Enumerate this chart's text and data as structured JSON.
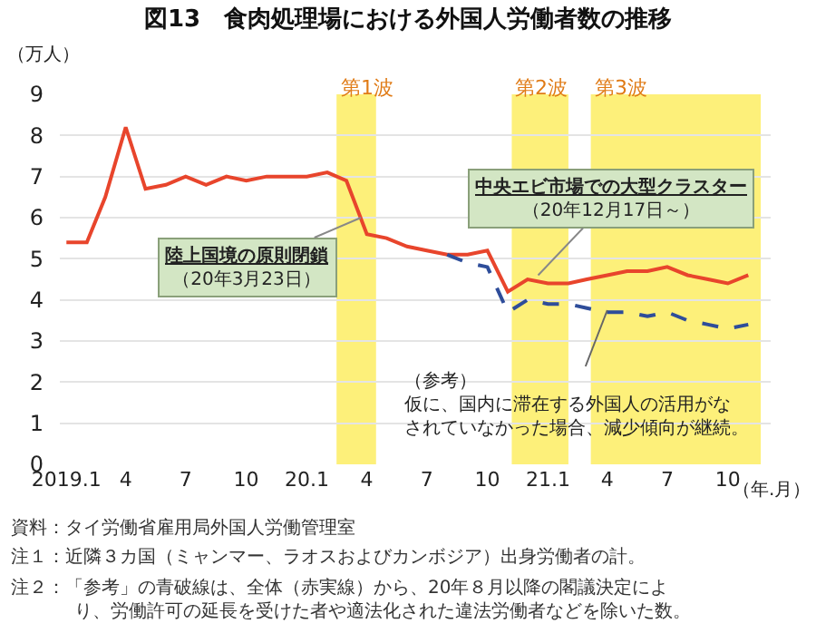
{
  "chart_data": {
    "type": "line",
    "title": "図13　食肉処理場における外国人労働者数の推移",
    "ylabel": "（万人）",
    "xlabel": "（年.月）",
    "x": [
      "2019-01",
      "2019-02",
      "2019-03",
      "2019-04",
      "2019-05",
      "2019-06",
      "2019-07",
      "2019-08",
      "2019-09",
      "2019-10",
      "2019-11",
      "2019-12",
      "2020-01",
      "2020-02",
      "2020-03",
      "2020-04",
      "2020-05",
      "2020-06",
      "2020-07",
      "2020-08",
      "2020-09",
      "2020-10",
      "2020-11",
      "2020-12",
      "2021-01",
      "2021-02",
      "2021-03",
      "2021-04",
      "2021-05",
      "2021-06",
      "2021-07",
      "2021-08",
      "2021-09",
      "2021-10",
      "2021-11"
    ],
    "series": [
      {
        "color": "#e8452c",
        "line_style": "solid",
        "values": [
          5.4,
          5.4,
          6.5,
          8.2,
          6.7,
          6.8,
          7.0,
          6.8,
          7.0,
          6.9,
          7.0,
          7.0,
          7.0,
          7.1,
          6.9,
          5.6,
          5.5,
          5.3,
          5.2,
          5.1,
          5.1,
          5.2,
          4.2,
          4.5,
          4.4,
          4.4,
          4.5,
          4.6,
          4.7,
          4.7,
          4.8,
          4.6,
          4.5,
          4.4,
          4.6
        ]
      },
      {
        "color": "#2e4d9a",
        "line_style": "dashed",
        "values": [
          null,
          null,
          null,
          null,
          null,
          null,
          null,
          null,
          null,
          null,
          null,
          null,
          null,
          null,
          null,
          null,
          null,
          null,
          null,
          5.1,
          4.9,
          4.8,
          3.7,
          4.0,
          3.9,
          3.9,
          3.8,
          3.7,
          3.7,
          3.6,
          3.7,
          3.5,
          3.4,
          3.3,
          3.4
        ]
      }
    ],
    "xlim": [
      "2018-12-22",
      "2021-12-05"
    ],
    "xticks": [
      {
        "value": "2019-01",
        "label": "2019.1"
      },
      {
        "value": "2019-04",
        "label": "4"
      },
      {
        "value": "2019-07",
        "label": "7"
      },
      {
        "value": "2019-10",
        "label": "10"
      },
      {
        "value": "2020-01",
        "label": "20.1"
      },
      {
        "value": "2020-04",
        "label": "4"
      },
      {
        "value": "2020-07",
        "label": "7"
      },
      {
        "value": "2020-10",
        "label": "10"
      },
      {
        "value": "2021-01",
        "label": "21.1"
      },
      {
        "value": "2021-04",
        "label": "4"
      },
      {
        "value": "2021-07",
        "label": "7"
      },
      {
        "value": "2021-10",
        "label": "10"
      }
    ],
    "ylim": [
      0,
      9
    ],
    "yticks": [
      0,
      1,
      2,
      3,
      4,
      5,
      6,
      7,
      8,
      9
    ],
    "grid": "y",
    "marker": "none",
    "bands": [
      {
        "axis": "x",
        "from": "2020-02-15",
        "to": "2020-04-15",
        "label": "第1波",
        "color": "#fdf07a"
      },
      {
        "axis": "x",
        "from": "2020-11-07",
        "to": "2021-02-01",
        "label": "第2波",
        "color": "#fdf07a"
      },
      {
        "axis": "x",
        "from": "2021-03-07",
        "to": "2021-11-20",
        "label": "第3波",
        "color": "#fdf07a"
      }
    ],
    "annotations": [
      {
        "text": "陸上国境の原則閉鎖（20年3月23日）",
        "x": "2020-03-23",
        "y": 6.0
      },
      {
        "text": "中央エビ市場での大型クラスター（20年12月17日～）",
        "x": "2020-12-17",
        "y": 4.6
      },
      {
        "text": "（参考）仮に、国内に滞在する外国人の活用がなされていなかった場合、減少傾向が継続。",
        "x": "2021-04-01",
        "y": 3.75
      },
      "資料：タイ労働省雇用局外国人労働管理室",
      "注１：近隣３カ国（ミャンマー、ラオスおよびカンボジア）出身労働者の計。",
      "注２：「参考」の青破線は、全体（赤実線）から、20年８月以降の閣議決定により、労働許可の延長を受けた者や適法化された違法労働者などを除いた数。"
    ]
  }
}
